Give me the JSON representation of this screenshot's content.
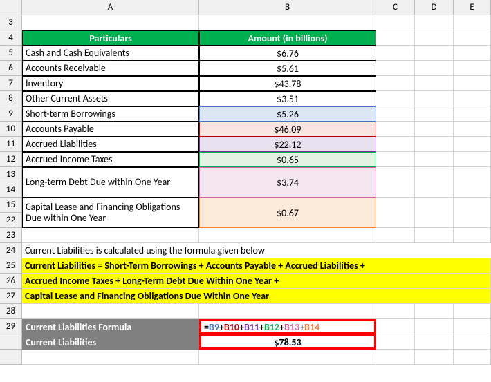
{
  "columns": [
    "A",
    "B",
    "C",
    "D",
    "E"
  ],
  "row_labels": [
    "3",
    "4",
    "5",
    "6",
    "7",
    "8",
    "9",
    "10",
    "11",
    "12",
    "13",
    "14",
    "15",
    "22",
    "23",
    "24",
    "25",
    "26",
    "27",
    "28",
    "29"
  ],
  "header": {
    "particulars": "Particulars",
    "amount": "Amount (in billions)"
  },
  "table": [
    {
      "label": "Cash and Cash Equivalents",
      "value": "$6.76",
      "hl": ""
    },
    {
      "label": "Accounts Receivable",
      "value": "$5.61",
      "hl": ""
    },
    {
      "label": "Inventory",
      "value": "$43.78",
      "hl": ""
    },
    {
      "label": "Other Current Assets",
      "value": "$3.51",
      "hl": ""
    },
    {
      "label": "Short-term Borrowings",
      "value": "$5.26",
      "hl": "blue"
    },
    {
      "label": "Accounts Payable",
      "value": "$46.09",
      "hl": "red"
    },
    {
      "label": "Accrued Liabilities",
      "value": "$22.12",
      "hl": "purple"
    },
    {
      "label": "Accrued Income Taxes",
      "value": "$0.65",
      "hl": "green"
    },
    {
      "label": "Long-term Debt Due within One Year",
      "value": "$3.74",
      "hl": "pink",
      "tall": 2
    },
    {
      "label": "Capital Lease and Financing Obligations Due within One Year",
      "value": "$0.67",
      "hl": "orange",
      "tall": 2
    }
  ],
  "explain": "Current Liabilities is calculated using the formula given below",
  "formula_lines": [
    "Current Liabilities = Short-Term Borrowings + Accounts Payable + Accrued Liabilities +",
    "Accrued Income Taxes + Long-Term Debt Due Within One Year +",
    "Capital Lease and Financing Obligations Due Within One Year"
  ],
  "result": {
    "label_formula": "Current Liabilities Formula",
    "label_value": "Current Liabilities",
    "value": "$78.53",
    "formula_parts": [
      {
        "text": "=",
        "color": "#000000"
      },
      {
        "text": "B9",
        "color": "#4472c4"
      },
      {
        "text": "+",
        "color": "#000000"
      },
      {
        "text": "B10",
        "color": "#c00000"
      },
      {
        "text": "+",
        "color": "#000000"
      },
      {
        "text": "B11",
        "color": "#7030a0"
      },
      {
        "text": "+",
        "color": "#000000"
      },
      {
        "text": "B12",
        "color": "#00b050"
      },
      {
        "text": "+",
        "color": "#000000"
      },
      {
        "text": "B13",
        "color": "#d060a0"
      },
      {
        "text": "+",
        "color": "#000000"
      },
      {
        "text": "B14",
        "color": "#ed7d31"
      }
    ]
  },
  "styling": {
    "header_bg": "#00b050",
    "highlight_bg": "#ffff00",
    "gray_bg": "#808080",
    "redbox_border": "#ff0000"
  }
}
